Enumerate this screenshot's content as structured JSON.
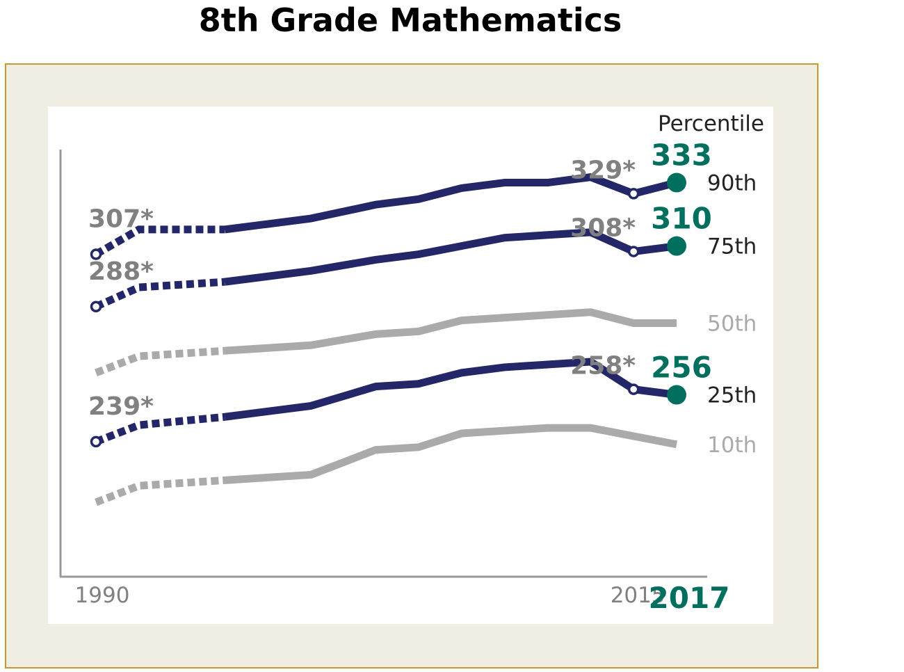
{
  "chart_data": {
    "type": "line",
    "title": "8th Grade Mathematics",
    "legend_title": "Percentile",
    "x": [
      1990,
      1992,
      1996,
      2000,
      2003,
      2005,
      2007,
      2009,
      2011,
      2013,
      2015,
      2017
    ],
    "x_tick_labels": [
      "1990",
      "2015",
      "2017"
    ],
    "series": [
      {
        "name": "90th",
        "highlight": true,
        "values": [
          307,
          316,
          316,
          320,
          325,
          327,
          331,
          333,
          333,
          335,
          329,
          333
        ],
        "labels": [
          {
            "x": 1990,
            "text": "307*"
          },
          {
            "x": 2015,
            "text": "329*"
          },
          {
            "x": 2017,
            "text": "333"
          }
        ]
      },
      {
        "name": "75th",
        "highlight": true,
        "values": [
          288,
          295,
          297,
          301,
          305,
          307,
          310,
          313,
          314,
          315,
          308,
          310
        ],
        "labels": [
          {
            "x": 1990,
            "text": "288*"
          },
          {
            "x": 2015,
            "text": "308*"
          },
          {
            "x": 2017,
            "text": "310"
          }
        ]
      },
      {
        "name": "50th",
        "highlight": false,
        "values": [
          264,
          270,
          272,
          274,
          278,
          279,
          283,
          284,
          285,
          286,
          282,
          282
        ],
        "labels": []
      },
      {
        "name": "25th",
        "highlight": true,
        "values": [
          239,
          245,
          248,
          252,
          259,
          260,
          264,
          266,
          267,
          268,
          258,
          256
        ],
        "labels": [
          {
            "x": 1990,
            "text": "239*"
          },
          {
            "x": 2015,
            "text": "258*"
          },
          {
            "x": 2017,
            "text": "256"
          }
        ]
      },
      {
        "name": "10th",
        "highlight": false,
        "values": [
          217,
          223,
          225,
          227,
          236,
          237,
          242,
          243,
          244,
          244,
          241,
          238
        ],
        "labels": []
      }
    ],
    "dotted_segment_years": [
      1990,
      1996
    ],
    "ylim": [
      190,
      345
    ],
    "colors": {
      "highlight": "#232667",
      "muted": "#aaaaab",
      "label": "#808080",
      "accent": "#006f5e",
      "frame_border": "#c49a2c",
      "frame_fill": "#f0ede3"
    }
  }
}
